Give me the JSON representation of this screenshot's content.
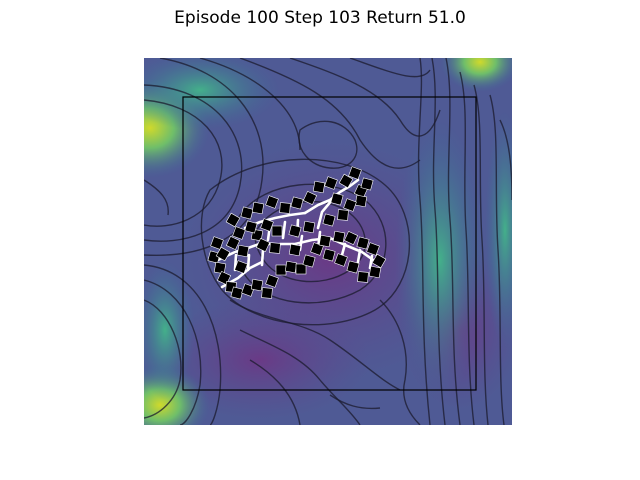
{
  "header": {
    "title": "Episode 100 Step 103 Return 51.0"
  },
  "colors": {
    "field_low": "#6b3e87",
    "field_mid": "#3d6a9a",
    "field_high": "#3aa48a",
    "field_peak": "#c9d82a",
    "contour": "#1a1a2a",
    "block": "#000000",
    "path": "#ffffff",
    "boundary": "#000000"
  },
  "scene": {
    "description_icons": [
      "heightmap-terrain",
      "square-block-agents",
      "trail-paths",
      "boundary-square"
    ]
  }
}
